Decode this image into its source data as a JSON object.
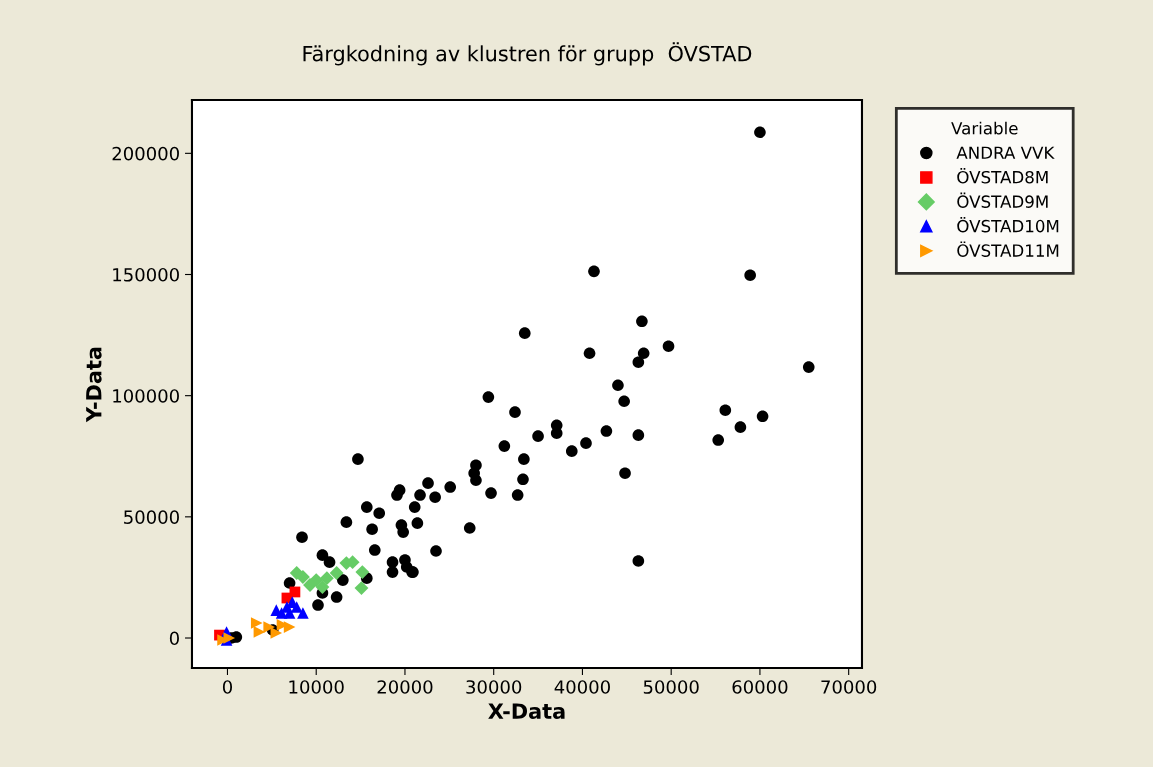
{
  "chart_data": {
    "type": "scatter",
    "title": "Färgkodning av klustren för grupp  ÖVSTAD",
    "xlabel": "X-Data",
    "ylabel": "Y-Data",
    "legend_title": "Variable",
    "legend": "top right",
    "grid": false,
    "xlim": [
      -4000,
      71500
    ],
    "ylim": [
      -12400,
      222000
    ],
    "xticks": [
      0,
      10000,
      20000,
      30000,
      40000,
      50000,
      60000,
      70000
    ],
    "yticks": [
      0,
      50000,
      100000,
      150000,
      200000
    ],
    "series": [
      {
        "name": "ANDRA VVK",
        "color": "#000000",
        "marker": "circle",
        "x": [
          60000,
          41300,
          58900,
          46700,
          33500,
          40800,
          46900,
          46300,
          49700,
          65500,
          44000,
          44700,
          29400,
          32400,
          37100,
          37100,
          35000,
          42700,
          46300,
          40400,
          38800,
          31200,
          33400,
          44800,
          28000,
          27800,
          28000,
          33300,
          29700,
          32700,
          25100,
          22600,
          21700,
          23400,
          21100,
          27300,
          23500,
          46300,
          19400,
          19600,
          20000,
          20800,
          21400,
          55300,
          56100,
          57800,
          60300,
          14700,
          19100,
          15700,
          17100,
          13400,
          16300,
          19800,
          8400,
          16600,
          18600,
          20200,
          18600,
          20900,
          10700,
          11500,
          15700,
          13000,
          10700,
          12300,
          10200,
          7000,
          1000,
          450,
          5100
        ],
        "values": [
          208700,
          151300,
          149700,
          130700,
          125800,
          117500,
          117500,
          113800,
          120400,
          111800,
          104300,
          97700,
          99400,
          93200,
          87800,
          84500,
          83300,
          85400,
          83700,
          80400,
          77100,
          79200,
          73800,
          68000,
          71300,
          68000,
          65100,
          65500,
          59800,
          59000,
          62300,
          63900,
          59000,
          58100,
          54000,
          45400,
          35900,
          31800,
          61000,
          46600,
          32200,
          27200,
          47400,
          81700,
          94000,
          87000,
          91500,
          73800,
          59000,
          54000,
          51500,
          47800,
          44900,
          43700,
          41600,
          36300,
          31300,
          29300,
          27200,
          27200,
          34200,
          31300,
          24700,
          23900,
          18600,
          16900,
          13600,
          22700,
          400,
          0,
          3300
        ]
      },
      {
        "name": "ÖVSTAD8M",
        "color": "#ff0000",
        "marker": "square",
        "x": [
          7600,
          6700,
          -900
        ],
        "values": [
          19000,
          16500,
          1200
        ]
      },
      {
        "name": "ÖVSTAD9M",
        "color": "#66cc66",
        "marker": "diamond",
        "x": [
          8500,
          7800,
          10000,
          11200,
          12300,
          13400,
          14100,
          10700,
          15200,
          15100,
          9300
        ],
        "values": [
          25200,
          26800,
          23900,
          24700,
          26800,
          30900,
          31300,
          21000,
          27200,
          20600,
          21900
        ]
      },
      {
        "name": "ÖVSTAD10M",
        "color": "#0000ff",
        "marker": "triangle",
        "x": [
          5500,
          6700,
          7800,
          8500,
          6100,
          7000,
          7300,
          -100,
          -100
        ],
        "values": [
          11500,
          12800,
          12800,
          10300,
          10300,
          10300,
          14800,
          -800,
          2500
        ]
      },
      {
        "name": "ÖVSTAD11M",
        "color": "#ff9900",
        "marker": "triangle-right",
        "x": [
          3300,
          3600,
          4700,
          6200,
          7000,
          5500,
          -500,
          200
        ],
        "values": [
          6200,
          2500,
          4500,
          5400,
          4500,
          2100,
          -800,
          0
        ]
      }
    ]
  }
}
